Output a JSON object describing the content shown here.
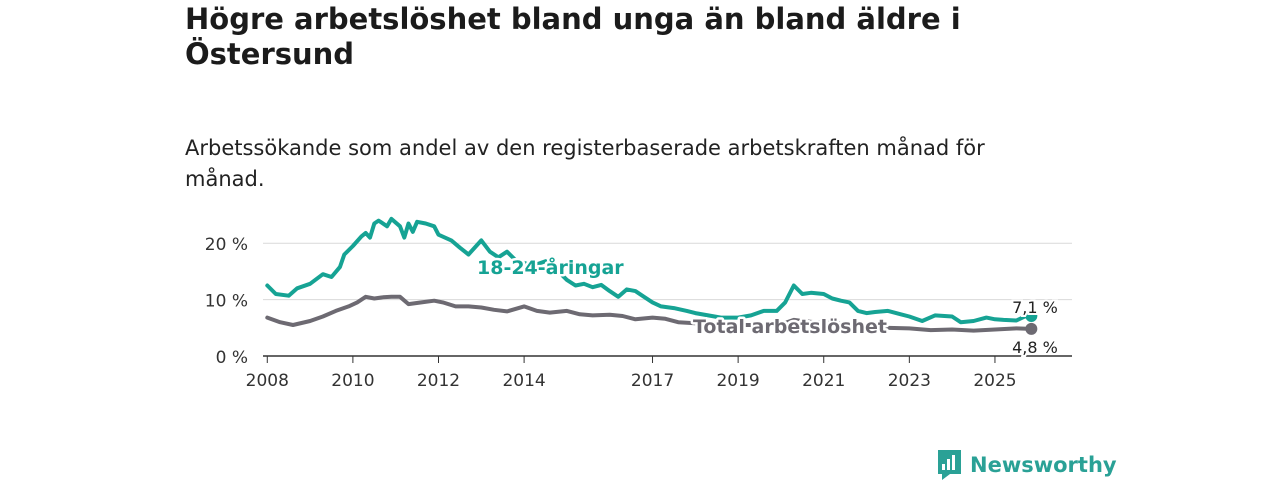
{
  "header": {
    "title": "Högre arbetslöshet bland unga än bland äldre i Östersund",
    "subtitle": "Arbetssökande som andel av den registerbaserade arbetskraften månad för månad."
  },
  "brand": {
    "name": "Newsworthy",
    "color": "#2aa196"
  },
  "chart_data": {
    "type": "line",
    "title": "Högre arbetslöshet bland unga än bland äldre i Östersund",
    "subtitle": "Arbetssökande som andel av den registerbaserade arbetskraften månad för månad.",
    "xlabel": "",
    "ylabel": "",
    "xlim": [
      2007.9,
      2026.8
    ],
    "ylim": [
      0,
      25
    ],
    "y_ticks": [
      {
        "value": 0,
        "label": "0 %"
      },
      {
        "value": 10,
        "label": "10 %"
      },
      {
        "value": 20,
        "label": "20 %"
      }
    ],
    "x_ticks": [
      {
        "value": 2008,
        "label": "2008"
      },
      {
        "value": 2010,
        "label": "2010"
      },
      {
        "value": 2012,
        "label": "2012"
      },
      {
        "value": 2014,
        "label": "2014"
      },
      {
        "value": 2017,
        "label": "2017"
      },
      {
        "value": 2019,
        "label": "2019"
      },
      {
        "value": 2021,
        "label": "2021"
      },
      {
        "value": 2023,
        "label": "2023"
      },
      {
        "value": 2025,
        "label": "2025"
      }
    ],
    "grid": true,
    "series": [
      {
        "name": "18-24-åringar",
        "color": "#16a394",
        "end_label": "7,1 %",
        "x": [
          2008.0,
          2008.2,
          2008.5,
          2008.7,
          2009.0,
          2009.3,
          2009.5,
          2009.7,
          2009.8,
          2010.0,
          2010.2,
          2010.3,
          2010.4,
          2010.5,
          2010.6,
          2010.8,
          2010.9,
          2011.1,
          2011.2,
          2011.3,
          2011.4,
          2011.5,
          2011.7,
          2011.9,
          2012.0,
          2012.3,
          2012.5,
          2012.7,
          2013.0,
          2013.2,
          2013.4,
          2013.6,
          2013.8,
          2014.0,
          2014.2,
          2014.5,
          2014.8,
          2015.0,
          2015.2,
          2015.4,
          2015.6,
          2015.8,
          2016.0,
          2016.2,
          2016.4,
          2016.6,
          2016.8,
          2017.0,
          2017.2,
          2017.5,
          2017.8,
          2018.0,
          2018.3,
          2018.6,
          2019.0,
          2019.3,
          2019.6,
          2019.9,
          2020.1,
          2020.3,
          2020.5,
          2020.7,
          2021.0,
          2021.2,
          2021.4,
          2021.6,
          2021.8,
          2022.0,
          2022.2,
          2022.5,
          2022.8,
          2023.0,
          2023.3,
          2023.6,
          2024.0,
          2024.2,
          2024.5,
          2024.8,
          2025.0,
          2025.2,
          2025.5,
          2025.7,
          2025.85
        ],
        "values": [
          12.5,
          11.0,
          10.7,
          12.0,
          12.8,
          14.5,
          14.0,
          15.8,
          18.0,
          19.5,
          21.2,
          21.8,
          21.0,
          23.5,
          24.0,
          23.0,
          24.3,
          23.0,
          21.0,
          23.5,
          22.0,
          23.8,
          23.5,
          23.0,
          21.5,
          20.5,
          19.2,
          18.0,
          20.5,
          18.5,
          17.5,
          18.5,
          17.0,
          16.5,
          16.0,
          16.8,
          15.0,
          13.5,
          12.5,
          12.8,
          12.2,
          12.6,
          11.5,
          10.5,
          11.8,
          11.5,
          10.5,
          9.5,
          8.8,
          8.5,
          8.0,
          7.6,
          7.2,
          6.8,
          6.8,
          7.2,
          8.0,
          8.0,
          9.5,
          12.5,
          11.0,
          11.2,
          11.0,
          10.2,
          9.8,
          9.5,
          8.0,
          7.6,
          7.8,
          8.0,
          7.4,
          7.0,
          6.2,
          7.2,
          7.0,
          6.0,
          6.2,
          6.8,
          6.5,
          6.4,
          6.3,
          7.0,
          7.1
        ]
      },
      {
        "name": "Total arbetslöshet",
        "color": "#6d6a72",
        "end_label": "4,8 %",
        "x": [
          2008.0,
          2008.3,
          2008.6,
          2009.0,
          2009.3,
          2009.6,
          2009.9,
          2010.1,
          2010.3,
          2010.5,
          2010.7,
          2010.9,
          2011.1,
          2011.3,
          2011.6,
          2011.9,
          2012.1,
          2012.4,
          2012.7,
          2013.0,
          2013.3,
          2013.6,
          2014.0,
          2014.3,
          2014.6,
          2015.0,
          2015.3,
          2015.6,
          2016.0,
          2016.3,
          2016.6,
          2017.0,
          2017.3,
          2017.6,
          2018.0,
          2018.5,
          2019.0,
          2019.5,
          2020.0,
          2020.3,
          2020.5,
          2020.8,
          2021.0,
          2021.3,
          2021.6,
          2022.0,
          2022.5,
          2023.0,
          2023.5,
          2024.0,
          2024.5,
          2025.0,
          2025.5,
          2025.85
        ],
        "values": [
          6.8,
          6.0,
          5.5,
          6.2,
          7.0,
          8.0,
          8.8,
          9.5,
          10.5,
          10.2,
          10.4,
          10.5,
          10.5,
          9.2,
          9.5,
          9.8,
          9.5,
          8.8,
          8.8,
          8.6,
          8.2,
          7.9,
          8.8,
          8.0,
          7.7,
          8.0,
          7.4,
          7.2,
          7.3,
          7.1,
          6.5,
          6.8,
          6.6,
          6.0,
          5.8,
          5.6,
          5.5,
          5.5,
          5.6,
          6.4,
          6.2,
          6.0,
          6.0,
          5.8,
          5.6,
          5.2,
          5.0,
          4.9,
          4.6,
          4.7,
          4.5,
          4.7,
          4.9,
          4.8
        ]
      }
    ]
  }
}
